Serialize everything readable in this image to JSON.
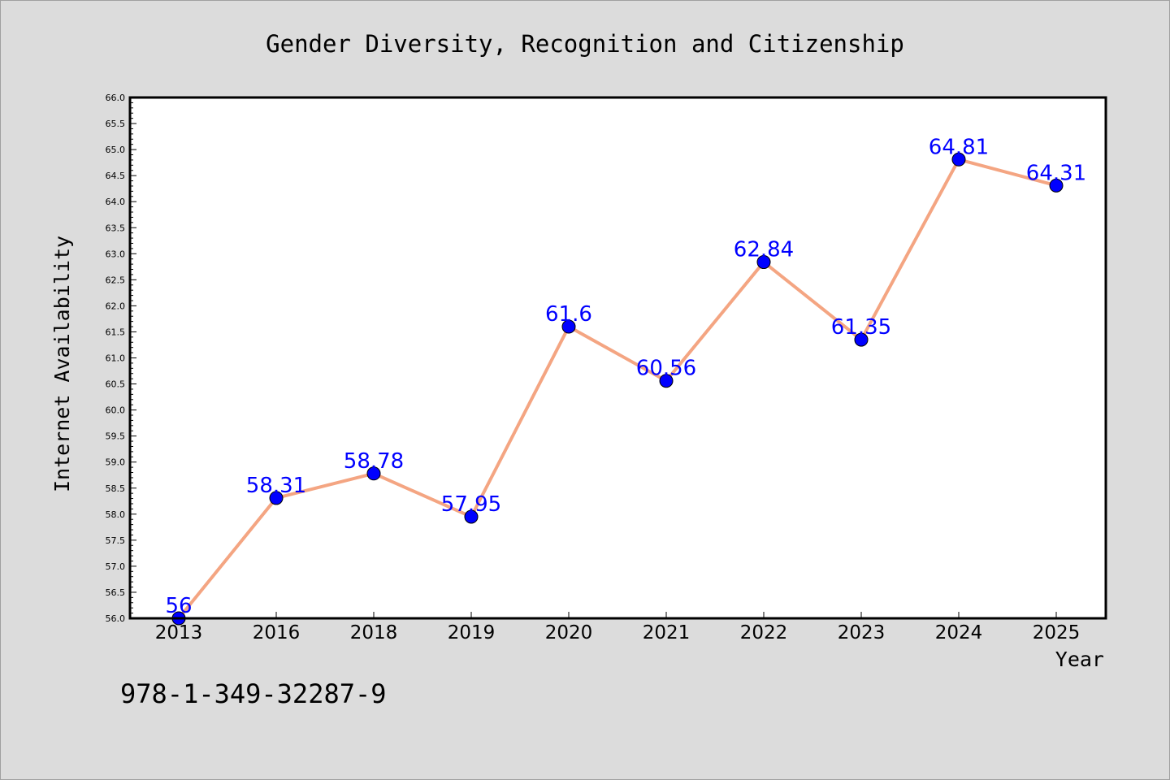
{
  "chart_data": {
    "type": "line",
    "title": "Gender Diversity, Recognition and Citizenship",
    "xlabel": "Year",
    "ylabel": "Internet Availability",
    "categories": [
      "2013",
      "2016",
      "2018",
      "2019",
      "2020",
      "2021",
      "2022",
      "2023",
      "2024",
      "2025"
    ],
    "values": [
      56,
      58.31,
      58.78,
      57.95,
      61.6,
      60.56,
      62.84,
      61.35,
      64.81,
      64.31
    ],
    "data_labels": [
      "56",
      "58.31",
      "58.78",
      "57.95",
      "61.6",
      "60.56",
      "62.84",
      "61.35",
      "64.81",
      "64.31"
    ],
    "ylim": [
      56.0,
      66.0
    ],
    "ytick_step": 0.5,
    "yticks": [
      "56.0",
      "56.5",
      "57.0",
      "57.5",
      "58.0",
      "58.5",
      "59.0",
      "59.5",
      "60.0",
      "60.5",
      "61.0",
      "61.5",
      "62.0",
      "62.5",
      "63.0",
      "63.5",
      "64.0",
      "64.5",
      "65.0",
      "65.5",
      "66.0"
    ],
    "grid": false,
    "line_color": "#f4a582",
    "marker_color": "#0000ff",
    "label_color": "#0000ff",
    "plot_background": "#ffffff",
    "figure_background": "#dcdcdc"
  },
  "footnote": "978-1-349-32287-9"
}
